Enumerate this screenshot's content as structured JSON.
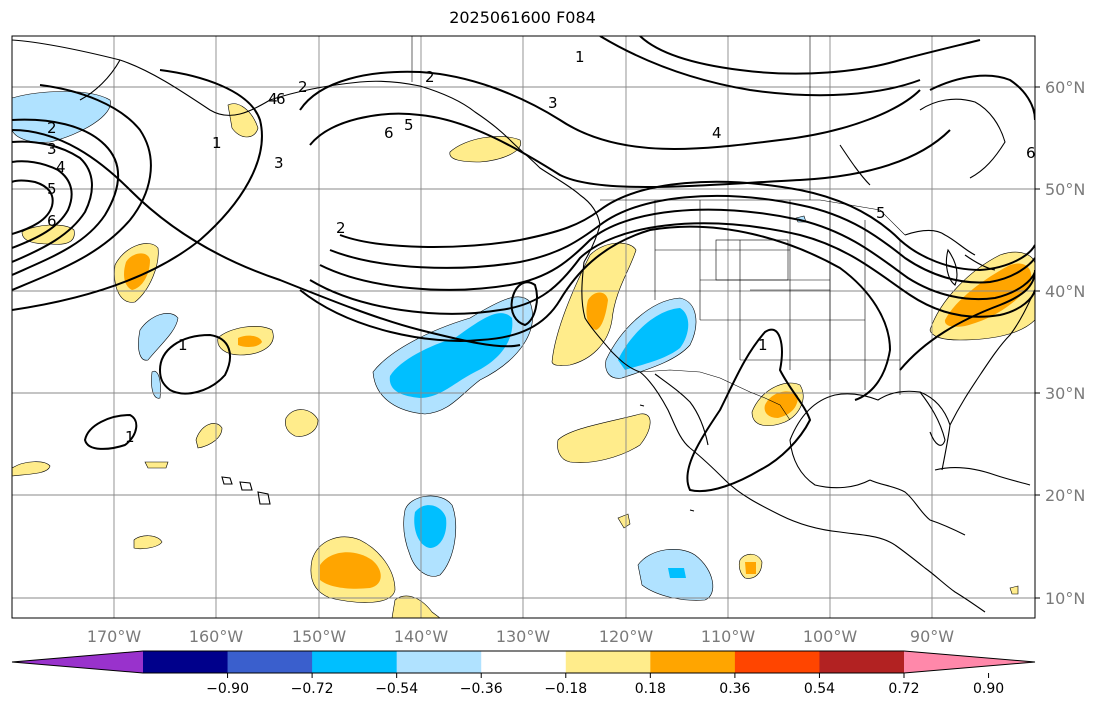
{
  "title": "2025061600 F084",
  "lat_labels": [
    "60°N",
    "50°N",
    "40°N",
    "30°N",
    "20°N",
    "10°N"
  ],
  "lon_labels": [
    "170°W",
    "160°W",
    "150°W",
    "140°W",
    "130°W",
    "120°W",
    "110°W",
    "100°W",
    "90°W"
  ],
  "colorbar": {
    "colors": [
      "#9932cc",
      "#00008b",
      "#3a5fcd",
      "#00bfff",
      "#b0e2ff",
      "#ffffff",
      "#ffec8b",
      "#ffa500",
      "#ff4500",
      "#b22222",
      "#ff88aa"
    ],
    "ticks": [
      "−0.90",
      "−0.72",
      "−0.54",
      "−0.36",
      "−0.18",
      "0.18",
      "0.36",
      "0.54",
      "0.72",
      "0.90"
    ]
  },
  "contour_labels": [
    "1",
    "1",
    "1",
    "1",
    "1",
    "2",
    "2",
    "2",
    "2",
    "3",
    "3",
    "3",
    "4",
    "4",
    "4",
    "5",
    "5",
    "5",
    "6",
    "6",
    "6",
    "6"
  ]
}
